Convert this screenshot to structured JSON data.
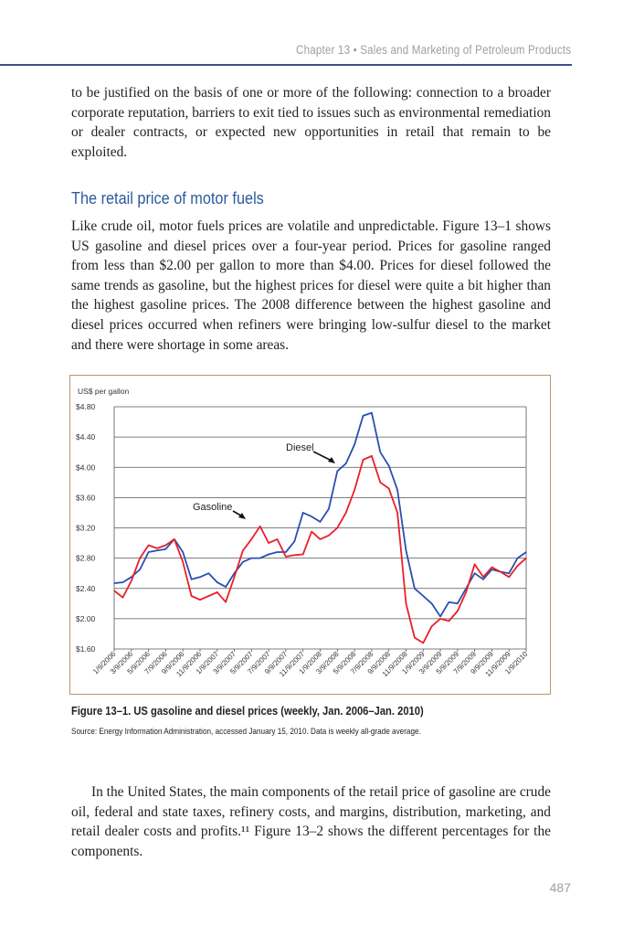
{
  "header": {
    "running_title": "Chapter 13  •  Sales and Marketing of Petroleum Products"
  },
  "body": {
    "para1": "to be justified on the basis of one or more of the following: connection to a broader corporate reputation, barriers to exit tied to issues such as environmental remediation or dealer contracts, or expected new opportunities in retail that remain to be exploited.",
    "heading": "The retail price of motor fuels",
    "para2": "Like crude oil, motor fuels prices are volatile and unpredictable. Figure 13–1 shows US gasoline and diesel prices over a four-year period. Prices for gasoline ranged from less than $2.00 per gallon to more than $4.00. Prices for diesel followed the same trends as gasoline, but the highest prices for diesel were quite a bit higher than the highest gasoline prices. The 2008 difference between the highest gasoline and diesel prices occurred when refiners were bringing low-sulfur diesel to the market and there were shortage in some areas.",
    "para3": "In the United States, the main components of the retail price of gasoline are crude oil, federal and state taxes, refinery costs, and margins, distribution, marketing, and retail dealer costs and profits.¹¹ Figure 13–2 shows the different percentages for the components."
  },
  "figure": {
    "caption": "Figure 13–1. US gasoline and diesel prices (weekly, Jan. 2006–Jan. 2010)",
    "source": "Source: Energy Information Administration, accessed January 15, 2010. Data is weekly all-grade average."
  },
  "page_number": "487",
  "chart_data": {
    "type": "line",
    "title": "",
    "ylabel": "US$ per gallon",
    "ylim": [
      1.6,
      4.8
    ],
    "yticks": [
      "$1.60",
      "$2.00",
      "$2.40",
      "$2.80",
      "$3.20",
      "$3.60",
      "$4.00",
      "$4.40",
      "$4.80"
    ],
    "ytick_values": [
      1.6,
      2.0,
      2.4,
      2.8,
      3.2,
      3.6,
      4.0,
      4.4,
      4.8
    ],
    "xticks": [
      "1/9/2006",
      "3/9/2006",
      "5/9/2006",
      "7/9/2006",
      "9/9/2006",
      "11/9/2006",
      "1/9/2007",
      "3/9/2007",
      "5/9/2007",
      "7/9/2007",
      "9/9/2007",
      "11/9/2007",
      "1/9/2008",
      "3/9/2008",
      "5/9/2008",
      "7/9/2008",
      "9/9/2008",
      "11/9/2008",
      "1/9/2009",
      "3/9/2009",
      "5/9/2009",
      "7/9/2009",
      "9/9/2009",
      "11/9/2009",
      "1/9/2010"
    ],
    "x_unit": "months since Jan 2006",
    "grid": true,
    "series": [
      {
        "name": "Diesel",
        "color": "#2a4fb0",
        "values": [
          2.47,
          2.48,
          2.55,
          2.65,
          2.88,
          2.9,
          2.92,
          3.05,
          2.88,
          2.52,
          2.55,
          2.6,
          2.48,
          2.42,
          2.6,
          2.75,
          2.8,
          2.8,
          2.85,
          2.88,
          2.88,
          3.02,
          3.4,
          3.35,
          3.28,
          3.45,
          3.95,
          4.05,
          4.3,
          4.68,
          4.72,
          4.2,
          4.02,
          3.7,
          2.9,
          2.4,
          2.3,
          2.2,
          2.03,
          2.22,
          2.2,
          2.4,
          2.6,
          2.52,
          2.65,
          2.62,
          2.6,
          2.8,
          2.88
        ]
      },
      {
        "name": "Gasoline",
        "color": "#e8202a",
        "values": [
          2.37,
          2.28,
          2.5,
          2.8,
          2.97,
          2.93,
          2.97,
          3.05,
          2.75,
          2.3,
          2.25,
          2.3,
          2.35,
          2.22,
          2.55,
          2.9,
          3.05,
          3.22,
          3.0,
          3.05,
          2.82,
          2.84,
          2.85,
          3.15,
          3.05,
          3.1,
          3.2,
          3.4,
          3.7,
          4.1,
          4.15,
          3.8,
          3.72,
          3.4,
          2.2,
          1.75,
          1.68,
          1.9,
          2.0,
          1.97,
          2.1,
          2.35,
          2.72,
          2.55,
          2.68,
          2.62,
          2.55,
          2.7,
          2.8
        ]
      }
    ],
    "annotations": [
      {
        "text": "Diesel",
        "series": "Diesel"
      },
      {
        "text": "Gasoline",
        "series": "Gasoline"
      }
    ]
  }
}
